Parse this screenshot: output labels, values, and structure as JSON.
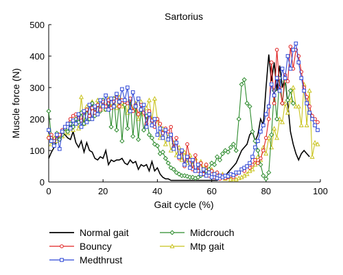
{
  "chart_data": {
    "type": "line",
    "title": "Sartorius",
    "xlabel": "Gait cycle (%)",
    "ylabel": "Muscle force (N)",
    "xlim": [
      0,
      100
    ],
    "ylim": [
      0,
      500
    ],
    "xticks": [
      "0",
      "20",
      "40",
      "60",
      "80",
      "100"
    ],
    "yticks": [
      "0",
      "100",
      "200",
      "300",
      "400",
      "500"
    ],
    "grid": false,
    "legend_position": "bottom",
    "series": [
      {
        "name": "Normal gait",
        "color": "#000000",
        "marker": "none",
        "x": [
          0,
          1,
          2,
          3,
          4,
          5,
          6,
          7,
          8,
          9,
          10,
          11,
          12,
          13,
          14,
          15,
          16,
          17,
          18,
          19,
          20,
          21,
          22,
          23,
          24,
          25,
          26,
          27,
          28,
          29,
          30,
          31,
          32,
          33,
          34,
          35,
          36,
          37,
          38,
          39,
          40,
          41,
          42,
          43,
          44,
          45,
          46,
          47,
          48,
          49,
          50,
          51,
          52,
          53,
          54,
          55,
          56,
          57,
          58,
          59,
          60,
          61,
          62,
          63,
          64,
          65,
          66,
          67,
          68,
          69,
          70,
          71,
          72,
          73,
          74,
          75,
          76,
          77,
          78,
          79,
          80,
          81,
          82,
          83,
          84,
          85,
          86,
          87,
          88,
          89,
          90,
          91,
          92,
          93,
          94,
          95,
          96
        ],
        "y": [
          75,
          95,
          110,
          130,
          150,
          155,
          150,
          140,
          135,
          160,
          125,
          110,
          130,
          95,
          125,
          100,
          95,
          75,
          70,
          80,
          75,
          100,
          55,
          70,
          65,
          70,
          70,
          75,
          60,
          55,
          70,
          60,
          65,
          40,
          55,
          50,
          55,
          35,
          65,
          35,
          45,
          25,
          15,
          10,
          10,
          5,
          5,
          5,
          5,
          5,
          5,
          5,
          5,
          5,
          5,
          5,
          5,
          5,
          5,
          5,
          5,
          5,
          5,
          10,
          15,
          20,
          30,
          40,
          50,
          60,
          80,
          100,
          110,
          120,
          150,
          160,
          130,
          150,
          200,
          180,
          300,
          405,
          320,
          380,
          290,
          370,
          300,
          330,
          250,
          160,
          120,
          90,
          70,
          90,
          100,
          90,
          80
        ]
      },
      {
        "name": "Bouncy",
        "color": "#e02020",
        "marker": "circle",
        "x": [
          0,
          1,
          2,
          3,
          4,
          5,
          6,
          7,
          8,
          9,
          10,
          11,
          12,
          13,
          14,
          15,
          16,
          17,
          18,
          19,
          20,
          21,
          22,
          23,
          24,
          25,
          26,
          27,
          28,
          29,
          30,
          31,
          32,
          33,
          34,
          35,
          36,
          37,
          38,
          39,
          40,
          41,
          42,
          43,
          44,
          45,
          46,
          47,
          48,
          49,
          50,
          51,
          52,
          53,
          54,
          55,
          56,
          57,
          58,
          59,
          60,
          61,
          62,
          63,
          64,
          65,
          66,
          67,
          68,
          69,
          70,
          71,
          72,
          73,
          74,
          75,
          76,
          77,
          78,
          79,
          80,
          81,
          82,
          83,
          84,
          85,
          86,
          87,
          88,
          89,
          90,
          91,
          92,
          93,
          94,
          95,
          96,
          97,
          98,
          99
        ],
        "y": [
          140,
          150,
          130,
          145,
          150,
          165,
          175,
          185,
          200,
          210,
          215,
          205,
          195,
          220,
          230,
          210,
          235,
          220,
          245,
          230,
          255,
          240,
          260,
          235,
          255,
          270,
          240,
          260,
          255,
          250,
          265,
          225,
          245,
          215,
          245,
          220,
          185,
          225,
          195,
          175,
          200,
          185,
          155,
          170,
          160,
          175,
          110,
          140,
          75,
          95,
          50,
          120,
          70,
          40,
          85,
          35,
          60,
          25,
          55,
          20,
          35,
          15,
          30,
          10,
          20,
          12,
          15,
          20,
          15,
          25,
          30,
          40,
          35,
          50,
          45,
          55,
          70,
          60,
          75,
          100,
          140,
          200,
          380,
          250,
          420,
          300,
          250,
          340,
          320,
          430,
          360,
          420,
          400,
          350,
          300,
          270,
          240,
          210,
          200,
          190
        ]
      },
      {
        "name": "Medthrust",
        "color": "#2b44d6",
        "marker": "square",
        "x": [
          0,
          1,
          2,
          3,
          4,
          5,
          6,
          7,
          8,
          9,
          10,
          11,
          12,
          13,
          14,
          15,
          16,
          17,
          18,
          19,
          20,
          21,
          22,
          23,
          24,
          25,
          26,
          27,
          28,
          29,
          30,
          31,
          32,
          33,
          34,
          35,
          36,
          37,
          38,
          39,
          40,
          41,
          42,
          43,
          44,
          45,
          46,
          47,
          48,
          49,
          50,
          51,
          52,
          53,
          54,
          55,
          56,
          57,
          58,
          59,
          60,
          61,
          62,
          63,
          64,
          65,
          66,
          67,
          68,
          69,
          70,
          71,
          72,
          73,
          74,
          75,
          76,
          77,
          78,
          79,
          80,
          81,
          82,
          83,
          84,
          85,
          86,
          87,
          88,
          89,
          90,
          91,
          92,
          93,
          94,
          95,
          96,
          97,
          98,
          99
        ],
        "y": [
          165,
          130,
          115,
          150,
          105,
          160,
          175,
          185,
          170,
          195,
          185,
          215,
          175,
          225,
          190,
          245,
          200,
          240,
          215,
          260,
          240,
          275,
          230,
          265,
          240,
          280,
          255,
          295,
          260,
          300,
          225,
          285,
          240,
          265,
          230,
          245,
          175,
          215,
          180,
          200,
          150,
          170,
          140,
          165,
          135,
          150,
          105,
          125,
          80,
          100,
          55,
          80,
          45,
          70,
          35,
          55,
          25,
          40,
          20,
          30,
          15,
          25,
          12,
          20,
          15,
          20,
          18,
          25,
          22,
          30,
          30,
          40,
          45,
          50,
          60,
          80,
          110,
          130,
          160,
          180,
          215,
          240,
          310,
          275,
          330,
          290,
          360,
          330,
          400,
          360,
          420,
          440,
          380,
          330,
          290,
          250,
          220,
          200,
          180,
          165
        ]
      },
      {
        "name": "Midcrouch",
        "color": "#2b8a2b",
        "marker": "diamond",
        "x": [
          0,
          1,
          2,
          3,
          4,
          5,
          6,
          7,
          8,
          9,
          10,
          11,
          12,
          13,
          14,
          15,
          16,
          17,
          18,
          19,
          20,
          21,
          22,
          23,
          24,
          25,
          26,
          27,
          28,
          29,
          30,
          31,
          32,
          33,
          34,
          35,
          36,
          37,
          38,
          39,
          40,
          41,
          42,
          43,
          44,
          45,
          46,
          47,
          48,
          49,
          50,
          51,
          52,
          53,
          54,
          55,
          56,
          57,
          58,
          59,
          60,
          61,
          62,
          63,
          64,
          65,
          66,
          67,
          68,
          69,
          70,
          71,
          72,
          73,
          74,
          75,
          76,
          77,
          78,
          79,
          80,
          81,
          82,
          83,
          84,
          85,
          86,
          87,
          88,
          89,
          90
        ],
        "y": [
          225,
          140,
          120,
          155,
          135,
          150,
          170,
          160,
          185,
          175,
          200,
          190,
          220,
          185,
          230,
          200,
          250,
          210,
          245,
          225,
          260,
          230,
          250,
          175,
          265,
          165,
          255,
          130,
          245,
          170,
          260,
          145,
          240,
          135,
          230,
          165,
          210,
          150,
          140,
          120,
          115,
          90,
          95,
          75,
          60,
          45,
          40,
          30,
          25,
          20,
          20,
          18,
          15,
          15,
          12,
          15,
          20,
          25,
          35,
          40,
          60,
          55,
          80,
          70,
          90,
          100,
          95,
          110,
          120,
          100,
          200,
          310,
          325,
          250,
          240,
          160,
          130,
          100,
          55,
          20,
          10,
          30,
          150,
          290,
          200,
          330,
          250,
          320,
          260,
          290,
          250
        ]
      },
      {
        "name": "Mtp gait",
        "color": "#c8c21a",
        "marker": "triangle",
        "x": [
          0,
          1,
          2,
          3,
          4,
          5,
          6,
          7,
          8,
          9,
          10,
          11,
          12,
          13,
          14,
          15,
          16,
          17,
          18,
          19,
          20,
          21,
          22,
          23,
          24,
          25,
          26,
          27,
          28,
          29,
          30,
          31,
          32,
          33,
          34,
          35,
          36,
          37,
          38,
          39,
          40,
          41,
          42,
          43,
          44,
          45,
          46,
          47,
          48,
          49,
          50,
          51,
          52,
          53,
          54,
          55,
          56,
          57,
          58,
          59,
          60,
          61,
          62,
          63,
          64,
          65,
          66,
          67,
          68,
          69,
          70,
          71,
          72,
          73,
          74,
          75,
          76,
          77,
          78,
          79,
          80,
          81,
          82,
          83,
          84,
          85,
          86,
          87,
          88,
          89,
          90,
          91,
          92,
          93,
          94,
          95,
          96,
          97,
          98,
          99
        ],
        "y": [
          145,
          120,
          140,
          130,
          150,
          145,
          160,
          155,
          175,
          165,
          190,
          170,
          270,
          185,
          240,
          200,
          255,
          220,
          260,
          235,
          255,
          230,
          265,
          240,
          250,
          235,
          270,
          240,
          255,
          220,
          265,
          230,
          250,
          200,
          255,
          215,
          235,
          260,
          195,
          265,
          200,
          140,
          170,
          120,
          145,
          100,
          125,
          85,
          110,
          70,
          95,
          60,
          85,
          55,
          75,
          45,
          65,
          40,
          55,
          30,
          40,
          25,
          30,
          15,
          25,
          10,
          15,
          8,
          10,
          8,
          12,
          15,
          20,
          25,
          35,
          40,
          55,
          80,
          70,
          110,
          90,
          140,
          110,
          170,
          140,
          200,
          190,
          250,
          220,
          260,
          300,
          240,
          240,
          180,
          310,
          180,
          290,
          80,
          125,
          120
        ]
      }
    ]
  }
}
